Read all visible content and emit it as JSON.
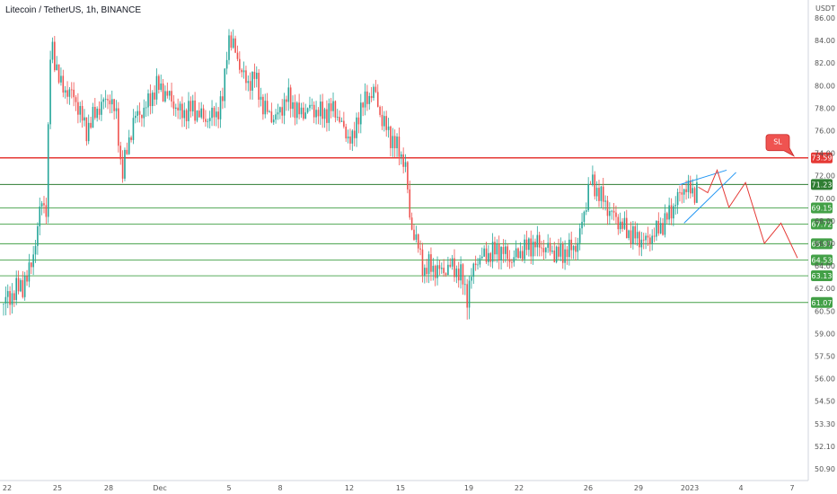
{
  "title": "Litecoin / TetherUS, 1h, BINANCE",
  "chart_data": {
    "type": "candlestick",
    "currency": "USDT",
    "y_ticks": [
      "86.00",
      "84.00",
      "82.00",
      "80.00",
      "78.00",
      "76.00",
      "74.00",
      "72.00",
      "70.00",
      "68.00",
      "66.00",
      "64.00",
      "62.00",
      "60.50",
      "59.00",
      "57.50",
      "56.00",
      "54.50",
      "53.30",
      "52.10",
      "50.90"
    ],
    "x_ticks": [
      "22",
      "25",
      "28",
      "Dec",
      "5",
      "8",
      "12",
      "15",
      "19",
      "22",
      "26",
      "29",
      "2023",
      "4",
      "7"
    ],
    "levels": [
      {
        "value": 73.59,
        "label": "73.59",
        "color": "#e53935",
        "kind": "stop-loss"
      },
      {
        "value": 71.23,
        "label": "71.23",
        "color": "#2e7d32",
        "kind": "support"
      },
      {
        "value": 69.15,
        "label": "69.15",
        "color": "#43a047",
        "kind": "support"
      },
      {
        "value": 67.72,
        "label": "67.72",
        "color": "#43a047",
        "kind": "support"
      },
      {
        "value": 65.97,
        "label": "65.97",
        "color": "#43a047",
        "kind": "support"
      },
      {
        "value": 64.53,
        "label": "64.53",
        "color": "#43a047",
        "kind": "support"
      },
      {
        "value": 63.13,
        "label": "63.13",
        "color": "#43a047",
        "kind": "support"
      },
      {
        "value": 61.07,
        "label": "61.07",
        "color": "#43a047",
        "kind": "support"
      }
    ],
    "callout": "SL",
    "price_path": [
      [
        0,
        61
      ],
      [
        1,
        62.8
      ],
      [
        1.4,
        66.5
      ],
      [
        1.6,
        70
      ],
      [
        1.8,
        69
      ],
      [
        2,
        84
      ],
      [
        2.4,
        80
      ],
      [
        3,
        79
      ],
      [
        3.5,
        76
      ],
      [
        4,
        78
      ],
      [
        4.5,
        79
      ],
      [
        4.8,
        77
      ],
      [
        5,
        72
      ],
      [
        5.2,
        74
      ],
      [
        5.5,
        77
      ],
      [
        6,
        78
      ],
      [
        6.5,
        80
      ],
      [
        7,
        79
      ],
      [
        7.5,
        77.5
      ],
      [
        8,
        78
      ],
      [
        8.5,
        77
      ],
      [
        9,
        77.5
      ],
      [
        9.3,
        79
      ],
      [
        9.5,
        84.5
      ],
      [
        9.8,
        83
      ],
      [
        10.3,
        80
      ],
      [
        10.6,
        81
      ],
      [
        11,
        78
      ],
      [
        11.5,
        77
      ],
      [
        12,
        79
      ],
      [
        12.5,
        77.5
      ],
      [
        13,
        78
      ],
      [
        13.5,
        77.5
      ],
      [
        14,
        78
      ],
      [
        14.4,
        76
      ],
      [
        14.8,
        75
      ],
      [
        15,
        77.5
      ],
      [
        15.4,
        79
      ],
      [
        15.7,
        79.5
      ],
      [
        16,
        77
      ],
      [
        16.5,
        75
      ],
      [
        16.8,
        74
      ],
      [
        17,
        73
      ],
      [
        17.2,
        68
      ],
      [
        17.5,
        66
      ],
      [
        17.8,
        63.5
      ],
      [
        18,
        64
      ],
      [
        18.5,
        63.5
      ],
      [
        19,
        64
      ],
      [
        19.4,
        63
      ],
      [
        19.6,
        61.5
      ],
      [
        20,
        64.5
      ],
      [
        20.5,
        65
      ],
      [
        21,
        65.5
      ],
      [
        21.5,
        64.5
      ],
      [
        22,
        65.5
      ],
      [
        22.5,
        66
      ],
      [
        23,
        65.5
      ],
      [
        23.5,
        65
      ],
      [
        24,
        65.5
      ],
      [
        24.3,
        66
      ],
      [
        24.6,
        69
      ],
      [
        24.8,
        71.5
      ],
      [
        25.2,
        70.5
      ],
      [
        25.6,
        69
      ],
      [
        26,
        68
      ],
      [
        26.4,
        67
      ],
      [
        26.8,
        66.5
      ],
      [
        27.2,
        66.2
      ],
      [
        27.6,
        67
      ],
      [
        28,
        68
      ],
      [
        28.4,
        69.5
      ],
      [
        28.8,
        71
      ],
      [
        29.2,
        70.5
      ],
      [
        29.4,
        71
      ]
    ],
    "price_x_range": [
      0,
      29.4
    ],
    "wedge_upper": [
      [
        28.6,
        71.2
      ],
      [
        30.6,
        72.5
      ]
    ],
    "wedge_lower": [
      [
        28.8,
        67.8
      ],
      [
        31,
        72.3
      ]
    ],
    "projection": [
      [
        29.4,
        71
      ],
      [
        29.8,
        70.5
      ],
      [
        30.2,
        72.5
      ],
      [
        30.7,
        69.2
      ],
      [
        31.4,
        71.4
      ],
      [
        32.2,
        66
      ],
      [
        32.9,
        67.8
      ],
      [
        33.6,
        64.7
      ]
    ],
    "time_range": [
      0,
      33.6
    ]
  }
}
